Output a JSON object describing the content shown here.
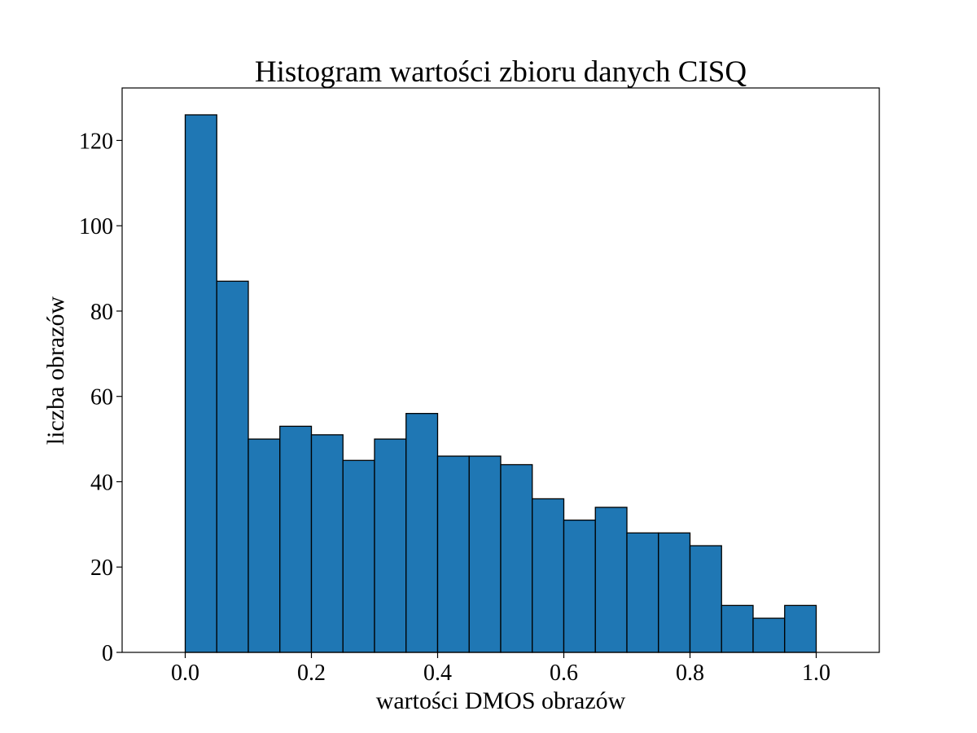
{
  "chart_data": {
    "type": "bar",
    "title": "Histogram wartości zbioru danych CISQ",
    "xlabel": "wartości DMOS obrazów",
    "ylabel": "liczba obrazów",
    "bin_edges": [
      0.0,
      0.05,
      0.1,
      0.15,
      0.2,
      0.25,
      0.3,
      0.35,
      0.4,
      0.45,
      0.5,
      0.55,
      0.6,
      0.65,
      0.7,
      0.75,
      0.8,
      0.85,
      0.9,
      0.95,
      1.0
    ],
    "values": [
      126,
      87,
      50,
      53,
      51,
      45,
      50,
      56,
      46,
      46,
      44,
      36,
      31,
      34,
      28,
      28,
      25,
      11,
      8,
      11
    ],
    "xlim": [
      -0.1,
      1.1
    ],
    "ylim": [
      0,
      132.3
    ],
    "xticks": [
      "0.0",
      "0.2",
      "0.4",
      "0.6",
      "0.8",
      "1.0"
    ],
    "yticks": [
      "0",
      "20",
      "40",
      "60",
      "80",
      "100",
      "120"
    ],
    "grid": false,
    "colors": {
      "bar_fill": "#1f77b4",
      "bar_edge": "#000000",
      "axes": "#000000"
    }
  }
}
